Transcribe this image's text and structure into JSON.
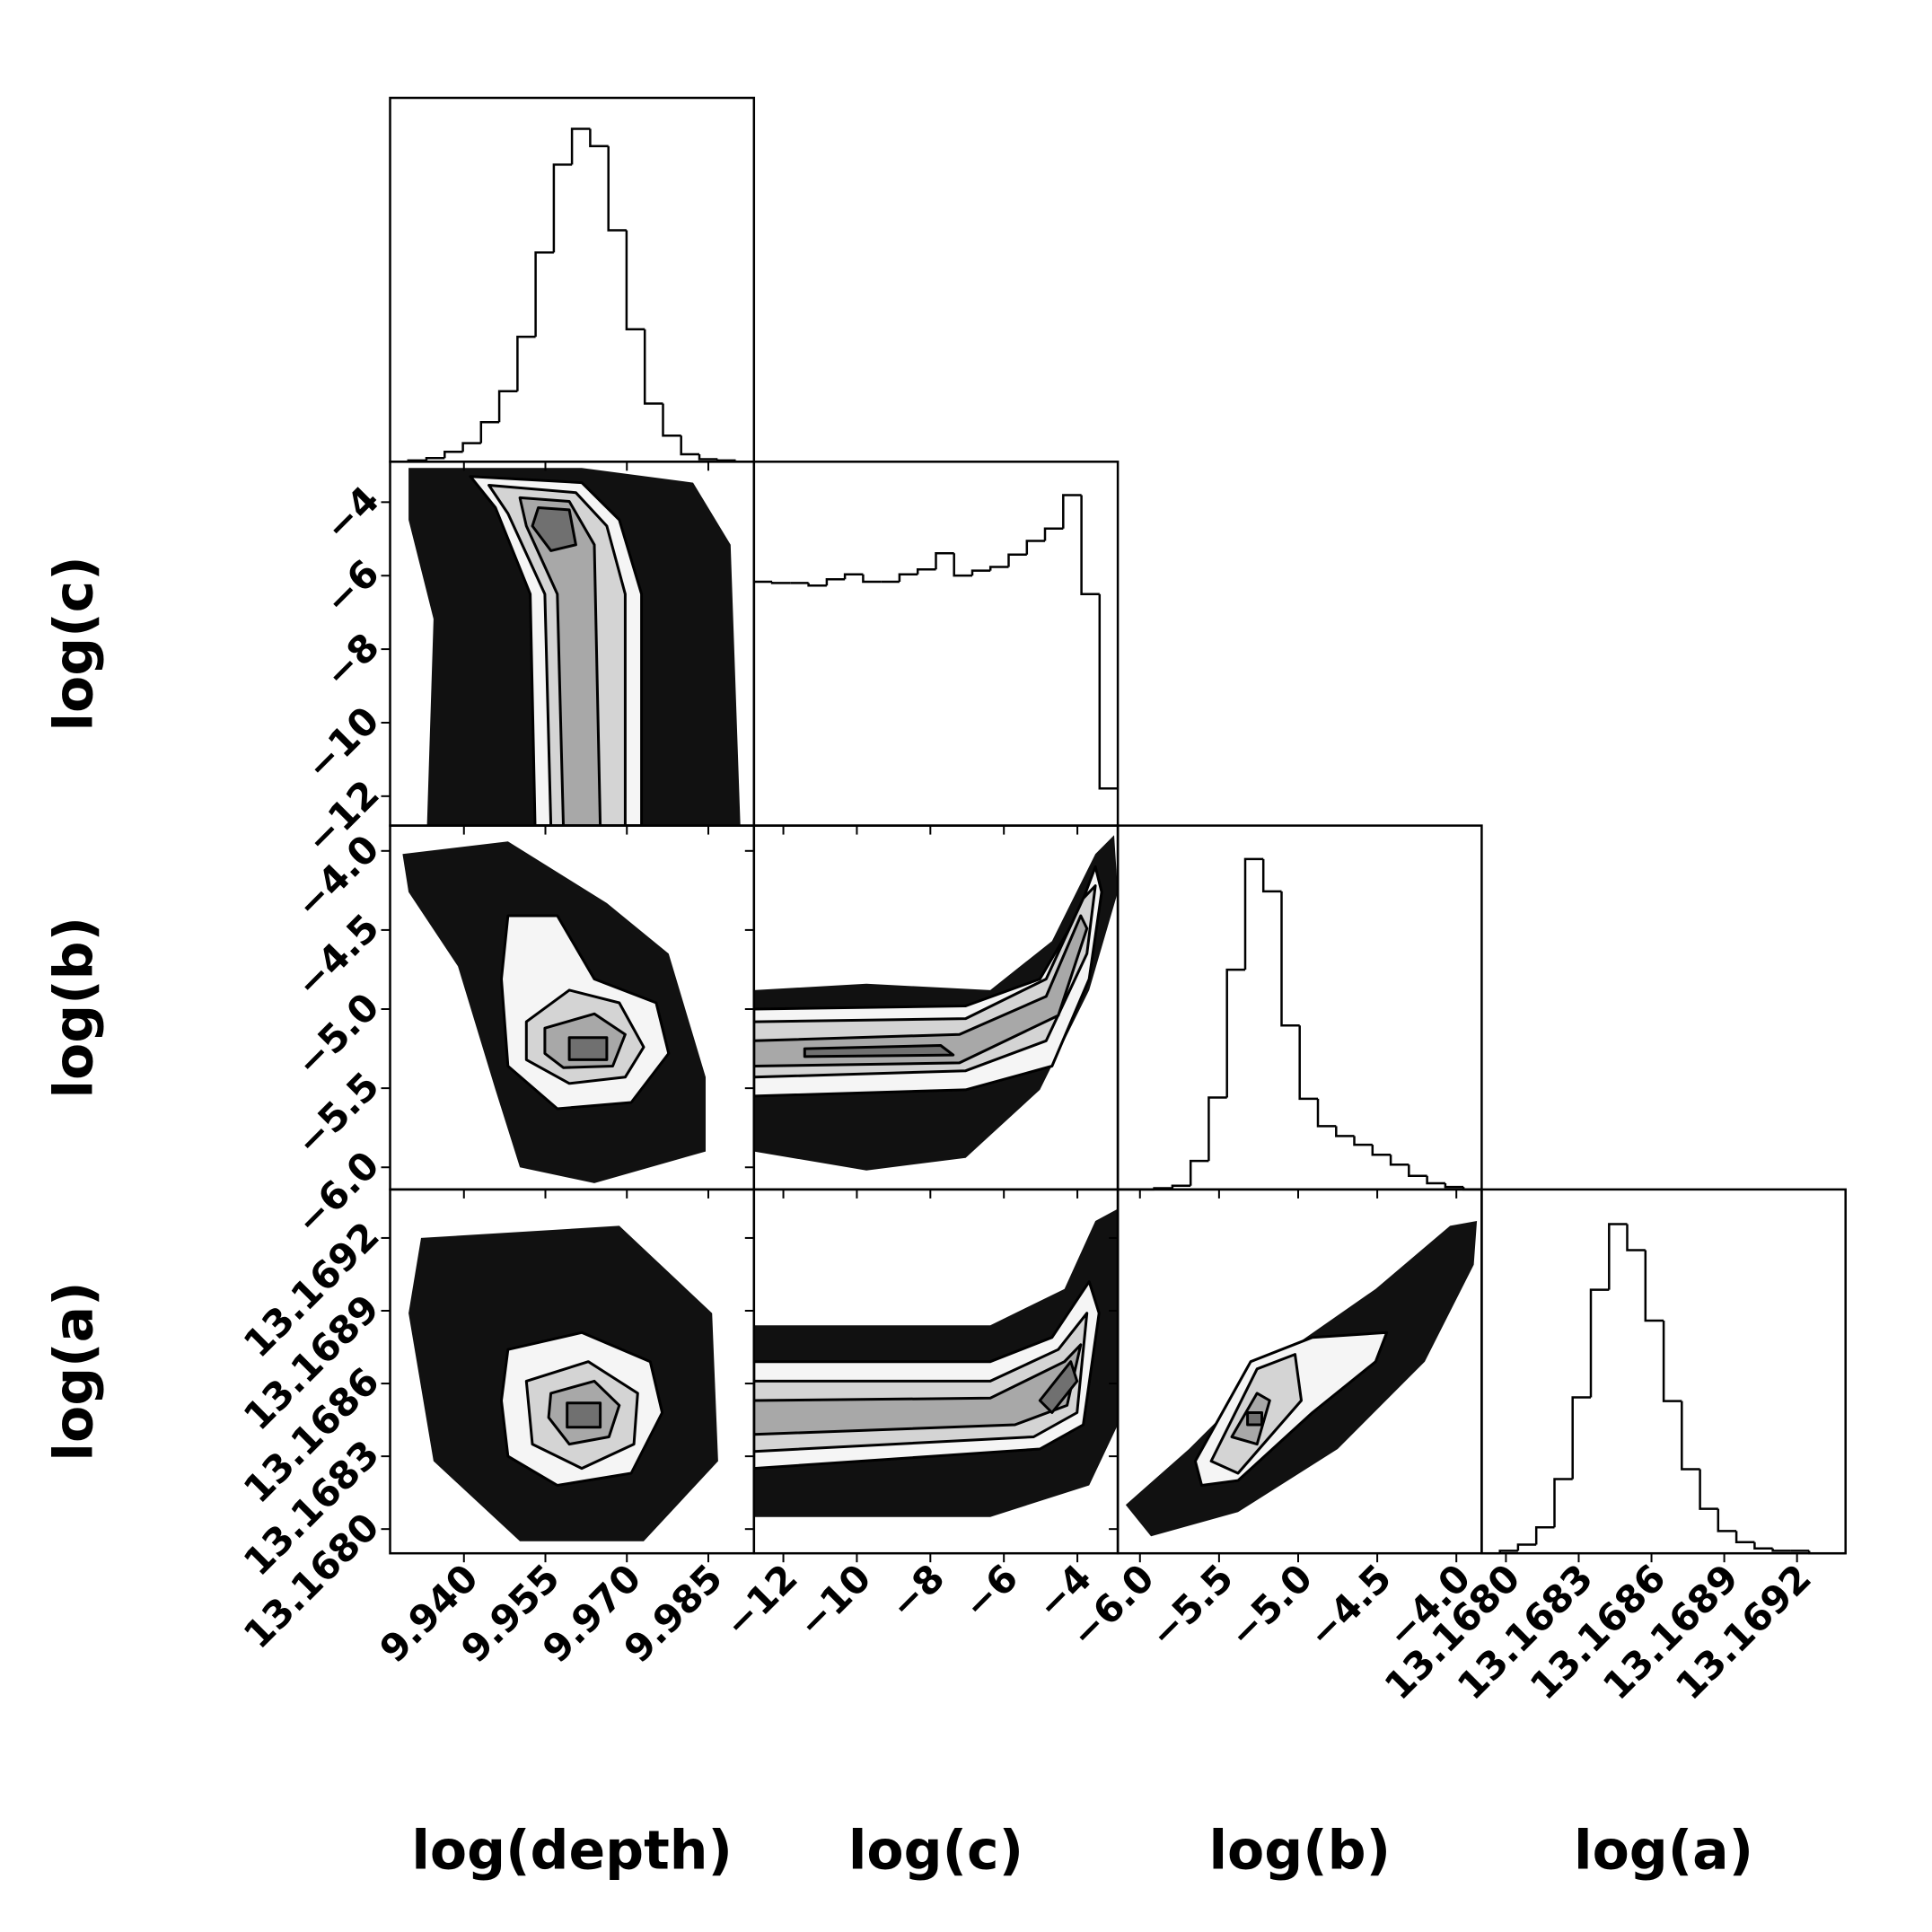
{
  "chart_data": {
    "type": "corner",
    "line_color": "#000000",
    "cloud_color": "#111111",
    "contour_colors": [
      "#f5f5f5",
      "#d4d4d4",
      "#a8a8a8",
      "#707070"
    ],
    "params": [
      {
        "label": "log(depth)",
        "lim": [
          9.9264,
          9.9934
        ],
        "ticks": [
          {
            "value": 9.94,
            "label": "9.940"
          },
          9.955,
          {
            "value": 9.97,
            "label": "9.970"
          },
          9.985
        ]
      },
      {
        "label": "log(c)",
        "lim": [
          -12.8,
          -2.9
        ],
        "ticks": [
          {
            "value": -12,
            "label": "−12"
          },
          {
            "value": -10,
            "label": "−10"
          },
          {
            "value": -8,
            "label": "−8"
          },
          {
            "value": -6,
            "label": "−6"
          },
          {
            "value": -4,
            "label": "−4"
          }
        ]
      },
      {
        "label": "log(b)",
        "lim": [
          -6.14,
          -3.84
        ],
        "ticks": [
          {
            "value": -6,
            "label": "−6.0"
          },
          {
            "value": -5.5,
            "label": "−5.5"
          },
          {
            "value": -5,
            "label": "−5.0"
          },
          {
            "value": -4.5,
            "label": "−4.5"
          },
          {
            "value": -4,
            "label": "−4.0"
          }
        ]
      },
      {
        "label": "log(a)",
        "lim": [
          13.1679,
          13.1694
        ],
        "ticks": [
          {
            "value": 13.168,
            "label": "13.1680"
          },
          13.1683,
          13.1686,
          13.1689,
          13.1692
        ]
      }
    ],
    "hists": [
      {
        "ylim": [
          0,
          294
        ],
        "bins": [
          9.9264,
          9.92975,
          9.9331,
          9.93645,
          9.9398,
          9.94315,
          9.9465,
          9.94985,
          9.9532,
          9.95655,
          9.9599,
          9.96325,
          9.9666,
          9.96995,
          9.9733,
          9.97665,
          9.98,
          9.98335,
          9.9867,
          9.99005,
          9.9934
        ],
        "counts": [
          0,
          1,
          3,
          8,
          15,
          32,
          57,
          101,
          169,
          240,
          269,
          255,
          187,
          107,
          47,
          21,
          6,
          2,
          1,
          0
        ]
      },
      {
        "ylim": [
          0,
          294
        ],
        "bins": [
          -12.8,
          -12.305,
          -11.81,
          -11.315,
          -10.82,
          -10.325,
          -9.83,
          -9.335,
          -8.84,
          -8.345,
          -7.85,
          -7.355,
          -6.86,
          -6.365,
          -5.87,
          -5.375,
          -4.88,
          -4.385,
          -3.89,
          -3.395,
          -2.9
        ],
        "counts": [
          197,
          196,
          196,
          194,
          199,
          203,
          197,
          197,
          203,
          207,
          220,
          202,
          206,
          209,
          219,
          230,
          240,
          267,
          187,
          30
        ]
      },
      {
        "ylim": [
          0,
          293
        ],
        "bins": [
          -6.14,
          -6.025,
          -5.91,
          -5.795,
          -5.68,
          -5.565,
          -5.45,
          -5.335,
          -5.22,
          -5.105,
          -4.99,
          -4.875,
          -4.76,
          -4.645,
          -4.53,
          -4.415,
          -4.3,
          -4.185,
          -4.07,
          -3.955,
          -3.84
        ],
        "counts": [
          0,
          0,
          1,
          3,
          23,
          74,
          177,
          266,
          240,
          132,
          73,
          51,
          43,
          36,
          28,
          20,
          11,
          5,
          2,
          0
        ]
      },
      {
        "ylim": [
          0,
          294
        ],
        "bins": [
          13.1679,
          13.167975,
          13.16805,
          13.168125,
          13.1682,
          13.168275,
          13.16835,
          13.168425,
          13.1685,
          13.168575,
          13.16865,
          13.168725,
          13.1688,
          13.168875,
          13.16895,
          13.169025,
          13.1691,
          13.169175,
          13.16925,
          13.169325,
          13.1694
        ],
        "counts": [
          0,
          2,
          7,
          21,
          60,
          126,
          213,
          266,
          245,
          188,
          123,
          68,
          36,
          18,
          9,
          4,
          2,
          2,
          0,
          0
        ]
      }
    ],
    "panels": [
      {
        "cloud": {
          "x": [
            9.9298,
            9.9617,
            9.9822,
            9.9891,
            9.9909,
            9.9332,
            9.9344,
            9.9298
          ],
          "y": [
            -3.07,
            -3.07,
            -3.47,
            -5.16,
            -12.8,
            -12.8,
            -7.18,
            -4.48
          ]
        },
        "contours": [
          {
            "x": [
              9.9412,
              9.9617,
              9.9686,
              9.9727,
              9.9727,
              9.9531,
              9.9522,
              9.9458
            ],
            "y": [
              -3.3,
              -3.47,
              -4.48,
              -6.5,
              -12.8,
              -12.8,
              -6.5,
              -4.15
            ]
          },
          {
            "x": [
              9.9446,
              9.9606,
              9.9663,
              9.9697,
              9.9697,
              9.956,
              9.9549,
              9.9481
            ],
            "y": [
              -3.54,
              -3.74,
              -4.65,
              -6.5,
              -12.8,
              -12.8,
              -6.5,
              -4.31
            ]
          },
          {
            "x": [
              9.9503,
              9.9594,
              9.964,
              9.9651,
              9.9583,
              9.9572,
              9.9515
            ],
            "y": [
              -3.88,
              -3.98,
              -5.16,
              -12.8,
              -12.8,
              -6.5,
              -4.65
            ]
          },
          {
            "x": [
              9.9537,
              9.9594,
              9.9606,
              9.956,
              9.9526
            ],
            "y": [
              -4.15,
              -4.21,
              -5.16,
              -5.32,
              -4.65
            ]
          }
        ]
      },
      {
        "cloud": {
          "x": [
            9.9287,
            9.9481,
            9.9663,
            9.9777,
            9.9845,
            9.9845,
            9.964,
            9.9503,
            9.9458,
            9.9389,
            9.9298
          ],
          "y": [
            -4.02,
            -3.94,
            -4.33,
            -4.65,
            -5.43,
            -5.9,
            -6.1,
            -6.0,
            -5.51,
            -4.73,
            -4.26
          ]
        },
        "contours": [
          {
            "x": [
              9.9481,
              9.9572,
              9.964,
              9.9754,
              9.9777,
              9.9708,
              9.9572,
              9.9481,
              9.9469
            ],
            "y": [
              -4.41,
              -4.41,
              -4.81,
              -4.96,
              -5.28,
              -5.59,
              -5.63,
              -5.36,
              -4.81
            ]
          },
          {
            "x": [
              9.9515,
              9.9594,
              9.9686,
              9.9731,
              9.9697,
              9.9594,
              9.9515
            ],
            "y": [
              -5.08,
              -4.88,
              -4.96,
              -5.24,
              -5.43,
              -5.47,
              -5.32
            ]
          },
          {
            "x": [
              9.9549,
              9.964,
              9.9697,
              9.9674,
              9.9583,
              9.9549
            ],
            "y": [
              -5.12,
              -5.03,
              -5.16,
              -5.36,
              -5.37,
              -5.28
            ]
          },
          {
            "x": [
              9.9594,
              9.9663,
              9.9663,
              9.9594
            ],
            "y": [
              -5.18,
              -5.18,
              -5.32,
              -5.32
            ]
          }
        ]
      },
      {
        "cloud": {
          "x": [
            -12.8,
            -9.74,
            -6.37,
            -4.69,
            -3.51,
            -3.0,
            -2.9,
            -3.68,
            -5.02,
            -7.04,
            -9.74,
            -12.8
          ],
          "y": [
            -4.88,
            -4.84,
            -4.88,
            -4.57,
            -4.02,
            -3.9,
            -4.26,
            -4.88,
            -5.51,
            -5.94,
            -6.02,
            -5.9
          ]
        },
        "contours": [
          {
            "x": [
              -12.8,
              -7.04,
              -5.02,
              -4.01,
              -3.51,
              -3.34,
              -3.68,
              -4.69,
              -7.04,
              -12.8
            ],
            "y": [
              -5.0,
              -4.98,
              -4.81,
              -4.41,
              -4.1,
              -4.26,
              -4.81,
              -5.36,
              -5.51,
              -5.55
            ]
          },
          {
            "x": [
              -12.8,
              -7.04,
              -4.85,
              -3.84,
              -3.51,
              -3.74,
              -4.85,
              -7.04,
              -12.8
            ],
            "y": [
              -5.08,
              -5.06,
              -4.81,
              -4.3,
              -4.22,
              -4.65,
              -5.2,
              -5.39,
              -5.43
            ]
          },
          {
            "x": [
              -12.8,
              -7.21,
              -4.85,
              -3.91,
              -3.74,
              -4.52,
              -7.21,
              -12.8
            ],
            "y": [
              -5.2,
              -5.16,
              -4.92,
              -4.41,
              -4.49,
              -5.04,
              -5.34,
              -5.36
            ]
          },
          {
            "x": [
              -11.42,
              -7.72,
              -7.38,
              -11.42
            ],
            "y": [
              -5.25,
              -5.23,
              -5.29,
              -5.3
            ]
          }
        ]
      },
      {
        "cloud": {
          "x": [
            9.9321,
            9.9686,
            9.9857,
            9.9868,
            9.9731,
            9.9503,
            9.9344,
            9.9298
          ],
          "y": [
            13.1692,
            13.16925,
            13.16889,
            13.16828,
            13.16795,
            13.16795,
            13.16828,
            13.16889
          ]
        },
        "contours": [
          {
            "x": [
              9.9481,
              9.9617,
              9.9743,
              9.9765,
              9.9708,
              9.9572,
              9.9481,
              9.9469
            ],
            "y": [
              13.16874,
              13.16881,
              13.16869,
              13.16848,
              13.16823,
              13.16818,
              13.1683,
              13.16853
            ]
          },
          {
            "x": [
              9.9515,
              9.9629,
              9.972,
              9.9713,
              9.9617,
              9.9526
            ],
            "y": [
              13.16861,
              13.16869,
              13.16856,
              13.16835,
              13.16825,
              13.16835
            ]
          },
          {
            "x": [
              9.956,
              9.964,
              9.9686,
              9.9667,
              9.9594,
              9.9556
            ],
            "y": [
              13.16856,
              13.16861,
              13.16851,
              13.16838,
              13.16835,
              13.16846
            ]
          },
          {
            "x": [
              9.959,
              9.9651,
              9.9651,
              9.959
            ],
            "y": [
              13.16852,
              13.16852,
              13.16842,
              13.16842
            ]
          }
        ]
      },
      {
        "cloud": {
          "x": [
            -12.8,
            -6.37,
            -4.35,
            -3.51,
            -2.9,
            -2.9,
            -3.68,
            -6.37,
            -12.8
          ],
          "y": [
            13.16884,
            13.16884,
            13.16899,
            13.16927,
            13.16932,
            13.16843,
            13.16818,
            13.16805,
            13.16805
          ]
        },
        "contours": [
          {
            "x": [
              -12.8,
              -6.37,
              -4.69,
              -3.68,
              -3.41,
              -3.84,
              -5.02,
              -12.8
            ],
            "y": [
              13.16869,
              13.16869,
              13.16879,
              13.16902,
              13.16889,
              13.16843,
              13.16833,
              13.16825
            ]
          },
          {
            "x": [
              -12.8,
              -6.37,
              -4.52,
              -3.74,
              -4.01,
              -5.19,
              -12.8
            ],
            "y": [
              13.16861,
              13.16861,
              13.16874,
              13.16889,
              13.16848,
              13.16838,
              13.16832
            ]
          },
          {
            "x": [
              -12.8,
              -6.37,
              -4.35,
              -3.91,
              -4.28,
              -5.7,
              -12.8
            ],
            "y": [
              13.16853,
              13.16854,
              13.16869,
              13.16876,
              13.16851,
              13.16843,
              13.16839
            ]
          },
          {
            "x": [
              -5.02,
              -4.18,
              -4.01,
              -4.69
            ],
            "y": [
              13.16853,
              13.16869,
              13.16861,
              13.16848
            ]
          }
        ]
      },
      {
        "cloud": {
          "x": [
            -6.09,
            -5.69,
            -5.06,
            -4.51,
            -4.04,
            -3.87,
            -3.89,
            -4.2,
            -4.75,
            -5.38,
            -5.93
          ],
          "y": [
            13.1681,
            13.16833,
            13.16874,
            13.16899,
            13.16925,
            13.16927,
            13.16909,
            13.16869,
            13.16833,
            13.16807,
            13.16797
          ]
        },
        "contours": [
          {
            "x": [
              -5.65,
              -5.3,
              -4.91,
              -4.44,
              -4.51,
              -4.91,
              -5.38,
              -5.61
            ],
            "y": [
              13.16828,
              13.16869,
              13.16879,
              13.16881,
              13.16869,
              13.16848,
              13.1682,
              13.16818
            ]
          },
          {
            "x": [
              -5.55,
              -5.26,
              -5.02,
              -4.98,
              -5.38
            ],
            "y": [
              13.16828,
              13.16866,
              13.16872,
              13.16853,
              13.16823
            ]
          },
          {
            "x": [
              -5.42,
              -5.26,
              -5.18,
              -5.26
            ],
            "y": [
              13.16838,
              13.16856,
              13.16853,
              13.16835
            ]
          },
          {
            "x": [
              -5.32,
              -5.23,
              -5.23,
              -5.32
            ],
            "y": [
              13.16848,
              13.16848,
              13.16843,
              13.16843
            ]
          }
        ]
      }
    ]
  }
}
